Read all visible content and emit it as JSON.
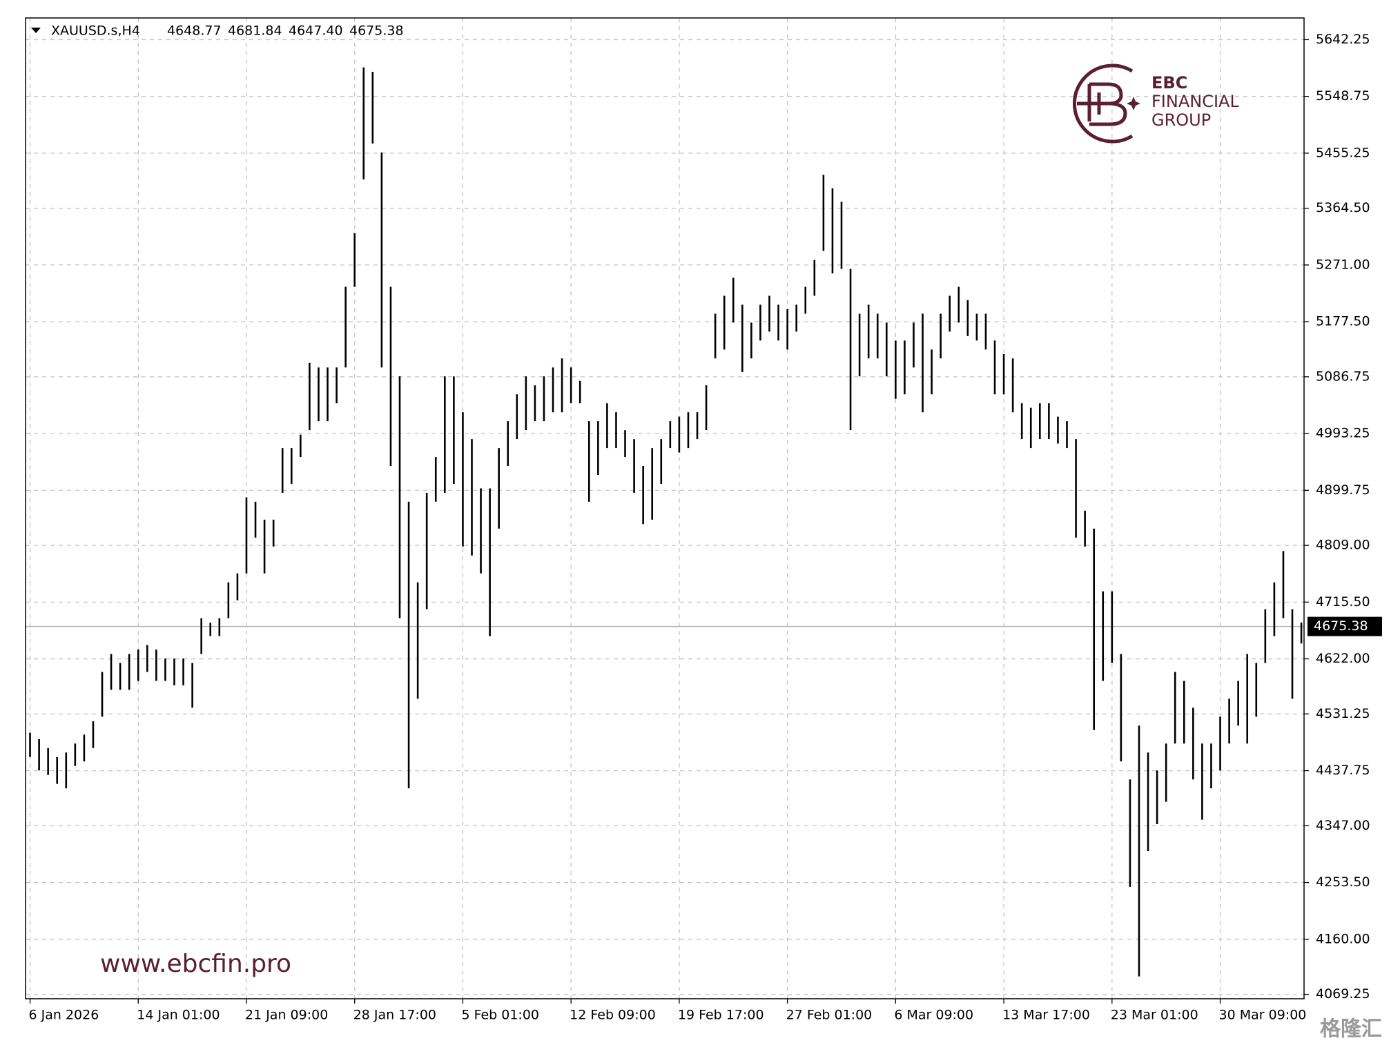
{
  "chart_data": {
    "type": "hl-bar",
    "symbol": "XAUUSD.s,H4",
    "header_values": [
      "4648.77",
      "4681.84",
      "4647.40",
      "4675.38"
    ],
    "watermark": "www.ebcfin.pro",
    "source_mark": "格隆汇",
    "logo": {
      "line1": "EBC",
      "line2": "FINANCIAL",
      "line3": "GROUP",
      "color": "#5b1f33"
    },
    "color": "#000000",
    "grid": true,
    "xlim": [
      -0.5,
      141.3
    ],
    "ylim": [
      4062,
      5678
    ],
    "xticks": [
      {
        "value": 0,
        "label": "6 Jan 2026"
      },
      {
        "value": 12,
        "label": "14 Jan 01:00"
      },
      {
        "value": 24,
        "label": "21 Jan 09:00"
      },
      {
        "value": 36,
        "label": "28 Jan 17:00"
      },
      {
        "value": 48,
        "label": "5 Feb 01:00"
      },
      {
        "value": 60,
        "label": "12 Feb 09:00"
      },
      {
        "value": 72,
        "label": "19 Feb 17:00"
      },
      {
        "value": 84,
        "label": "27 Feb 01:00"
      },
      {
        "value": 96,
        "label": "6 Mar 09:00"
      },
      {
        "value": 108,
        "label": "13 Mar 17:00"
      },
      {
        "value": 120,
        "label": "23 Mar 01:00"
      },
      {
        "value": 132,
        "label": "30 Mar 09:00"
      }
    ],
    "yticks": [
      5642.25,
      5548.75,
      5455.25,
      {
        "value": 5364.5,
        "label": "5364.50"
      },
      {
        "value": 5271,
        "label": "5271.00"
      },
      {
        "value": 5177.5,
        "label": "5177.50"
      },
      5086.75,
      4993.25,
      4899.75,
      {
        "value": 4809,
        "label": "4809.00"
      },
      {
        "value": 4715.5,
        "label": "4715.50"
      },
      {
        "value": 4622,
        "label": "4622.00"
      },
      4531.25,
      4437.75,
      {
        "value": 4347,
        "label": "4347.00"
      },
      {
        "value": 4253.5,
        "label": "4253.50"
      },
      {
        "value": 4160,
        "label": "4160.00"
      },
      4069.25
    ],
    "last_price": {
      "value": 4675.38,
      "label": "4675.38"
    },
    "high": [
      4500.2,
      4489.8,
      4475.1,
      4460.3,
      4467.7,
      4482.5,
      4497.2,
      4519.3,
      4600.5,
      4630.0,
      4615.3,
      4630.0,
      4637.4,
      4644.8,
      4637.4,
      4622.6,
      4622.6,
      4622.6,
      4615.3,
      4689.0,
      4681.7,
      4689.0,
      4748.1,
      4762.8,
      4888.2,
      4880.9,
      4851.4,
      4851.4,
      4969.4,
      4969.4,
      4991.5,
      5109.6,
      5102.2,
      5102.2,
      5102.2,
      5235.0,
      5323.5,
      5596.5,
      5589.2,
      5456.4,
      5235.0,
      5087.5,
      4880.9,
      4748.1,
      4895.6,
      4954.6,
      5087.5,
      5087.5,
      5028.4,
      4984.2,
      4903.0,
      4903.0,
      4969.4,
      5013.7,
      5057.9,
      5087.5,
      5072.7,
      5087.5,
      5102.2,
      5117.0,
      5102.2,
      5080.1,
      5013.7,
      5013.7,
      5043.2,
      5028.4,
      4998.9,
      4984.2,
      4939.9,
      4969.4,
      4984.2,
      5013.7,
      5021.1,
      5028.4,
      5028.4,
      5072.7,
      5190.7,
      5220.3,
      5249.8,
      5205.5,
      5176.0,
      5205.5,
      5220.3,
      5205.5,
      5198.1,
      5205.5,
      5235.0,
      5279.3,
      5419.5,
      5397.3,
      5375.2,
      5264.5,
      5190.7,
      5205.5,
      5190.7,
      5176.0,
      5146.5,
      5146.5,
      5176.0,
      5190.7,
      5131.7,
      5190.7,
      5220.3,
      5235.0,
      5212.9,
      5190.7,
      5190.7,
      5146.5,
      5124.3,
      5117.0,
      5043.2,
      5035.8,
      5043.2,
      5043.2,
      5021.1,
      5013.7,
      4984.2,
      4866.1,
      4836.6,
      4733.3,
      4733.3,
      4630.0,
      4423.4,
      4512.0,
      4467.7,
      4438.2,
      4482.5,
      4600.5,
      4585.7,
      4541.5,
      4482.5,
      4482.5,
      4526.7,
      4556.2,
      4585.7,
      4630.0,
      4615.3,
      4703.8,
      4748.1,
      4799.7,
      4703.8,
      4681.84
    ],
    "low": [
      4460.3,
      4438.2,
      4430.8,
      4416.1,
      4408.7,
      4445.6,
      4453.0,
      4475.1,
      4526.7,
      4571.0,
      4571.0,
      4571.0,
      4585.7,
      4600.5,
      4585.7,
      4585.7,
      4578.4,
      4578.4,
      4541.5,
      4630.0,
      4659.5,
      4659.5,
      4689.0,
      4718.6,
      4762.8,
      4821.8,
      4762.8,
      4807.1,
      4895.6,
      4910.4,
      4954.6,
      4998.9,
      5013.7,
      5013.7,
      5043.2,
      5102.2,
      5235.0,
      5412.1,
      5471.1,
      5102.2,
      4939.9,
      4689.0,
      4408.7,
      4556.2,
      4703.8,
      4880.9,
      4895.6,
      4910.4,
      4807.1,
      4792.3,
      4762.8,
      4659.5,
      4836.6,
      4939.9,
      4984.2,
      4998.9,
      5013.7,
      5013.7,
      5028.4,
      5028.4,
      5043.2,
      5043.2,
      4880.9,
      4925.1,
      4969.4,
      4969.4,
      4954.6,
      4895.6,
      4844.0,
      4851.4,
      4910.4,
      4969.4,
      4962.0,
      4969.4,
      4984.2,
      4998.9,
      5117.0,
      5131.7,
      5176.0,
      5094.8,
      5117.0,
      5146.5,
      5161.2,
      5146.5,
      5131.7,
      5161.2,
      5190.7,
      5220.3,
      5294.0,
      5257.1,
      5264.5,
      4998.9,
      5087.5,
      5117.0,
      5117.0,
      5087.5,
      5050.6,
      5057.9,
      5102.2,
      5028.4,
      5057.9,
      5117.0,
      5161.2,
      5176.0,
      5153.9,
      5146.5,
      5131.7,
      5057.9,
      5057.9,
      5028.4,
      4984.2,
      4969.4,
      4984.2,
      4984.2,
      4976.8,
      4969.4,
      4821.8,
      4807.1,
      4504.6,
      4585.7,
      4615.3,
      4453.0,
      4246.4,
      4098.8,
      4305.4,
      4349.7,
      4386.5,
      4482.5,
      4482.5,
      4423.4,
      4357.0,
      4408.7,
      4438.2,
      4482.5,
      4512.0,
      4482.5,
      4526.7,
      4615.3,
      4659.5,
      4689.0,
      4556.2,
      4647.4
    ]
  }
}
